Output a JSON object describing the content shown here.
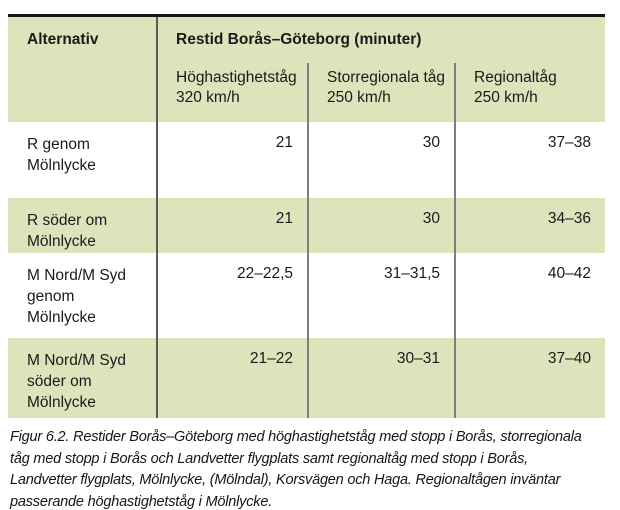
{
  "table": {
    "header": {
      "alternativ": "Alternativ",
      "restid": "Restid Borås–Göteborg (minuter)",
      "columns": [
        {
          "line1": "Höghastighetståg",
          "line2": "320 km/h"
        },
        {
          "line1": "Storregionala tåg",
          "line2": "250 km/h"
        },
        {
          "line1": "Regionaltåg",
          "line2": "250 km/h"
        }
      ]
    },
    "rows": [
      {
        "label": "R genom Mölnlycke",
        "label_lines": [
          "R genom",
          "Mölnlycke"
        ],
        "values": [
          "21",
          "30",
          "37–38"
        ]
      },
      {
        "label": "R söder om Mölnlycke",
        "label_lines": [
          "R söder om",
          "Mölnlycke"
        ],
        "values": [
          "21",
          "30",
          "34–36"
        ]
      },
      {
        "label": "M Nord/M Syd genom Mölnlycke",
        "label_lines": [
          "M Nord/M Syd",
          "genom",
          "Mölnlycke"
        ],
        "values": [
          "22–22,5",
          "31–31,5",
          "40–42"
        ]
      },
      {
        "label": "M Nord/M Syd söder om Mölnlycke",
        "label_lines": [
          "M Nord/M Syd",
          "söder om",
          "Mölnlycke"
        ],
        "values": [
          "21–22",
          "30–31",
          "37–40"
        ]
      }
    ]
  },
  "caption": {
    "lines": [
      "Figur 6.2.  Restider Borås–Göteborg med höghastighetståg med stopp i Borås, storregionala",
      "tåg med stopp i Borås och Landvetter flygplats samt regionaltåg med stopp i Borås,",
      "Landvetter flygplats, Mölnlycke, (Mölndal), Korsvägen och Haga. Regionaltågen inväntar",
      "passerande höghastighetståg i Mölnlycke."
    ]
  },
  "colors": {
    "row_shade_green": "#dfe3bc",
    "row_shade_white": "#ffffff",
    "table_top_border": "#161616",
    "column_divider_dark": "#5a5a5a",
    "column_divider_gray": "#7e7e7e",
    "text": "#1a1a1a"
  }
}
